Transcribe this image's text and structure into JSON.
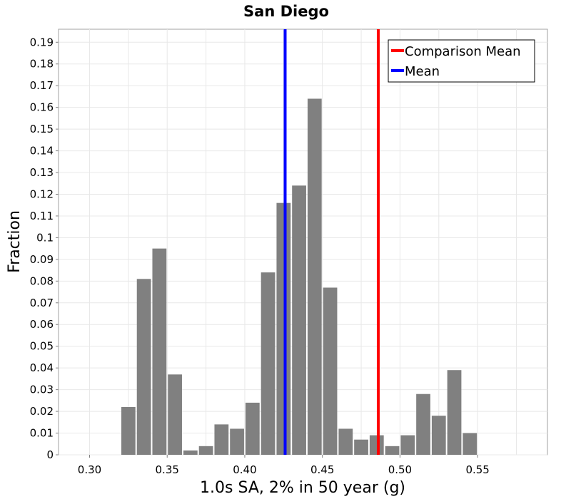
{
  "chart_data": {
    "type": "bar",
    "title": "San Diego",
    "xlabel": "1.0s SA, 2% in 50 year (g)",
    "ylabel": "Fraction",
    "xlim": [
      0.28,
      0.595
    ],
    "ylim": [
      0,
      0.196
    ],
    "grid": true,
    "legend_position": "top-right",
    "colors": {
      "bars": "#808080",
      "mean": "#0000ff",
      "comparison_mean": "#ff0000",
      "grid": "#e8e8e8"
    },
    "x_ticks": [
      "0.30",
      "0.35",
      "0.40",
      "0.45",
      "0.50",
      "0.55"
    ],
    "x_tick_values": [
      0.3,
      0.35,
      0.4,
      0.45,
      0.5,
      0.55
    ],
    "y_ticks": [
      "0",
      "0.01",
      "0.02",
      "0.03",
      "0.04",
      "0.05",
      "0.06",
      "0.07",
      "0.08",
      "0.09",
      "0.1",
      "0.11",
      "0.12",
      "0.13",
      "0.14",
      "0.15",
      "0.16",
      "0.17",
      "0.18",
      "0.19"
    ],
    "y_tick_values": [
      0,
      0.01,
      0.02,
      0.03,
      0.04,
      0.05,
      0.06,
      0.07,
      0.08,
      0.09,
      0.1,
      0.11,
      0.12,
      0.13,
      0.14,
      0.15,
      0.16,
      0.17,
      0.18,
      0.19
    ],
    "bins": [
      {
        "x": 0.325,
        "value": 0.022
      },
      {
        "x": 0.335,
        "value": 0.081
      },
      {
        "x": 0.345,
        "value": 0.095
      },
      {
        "x": 0.355,
        "value": 0.037
      },
      {
        "x": 0.365,
        "value": 0.002
      },
      {
        "x": 0.375,
        "value": 0.004
      },
      {
        "x": 0.385,
        "value": 0.014
      },
      {
        "x": 0.395,
        "value": 0.012
      },
      {
        "x": 0.405,
        "value": 0.024
      },
      {
        "x": 0.415,
        "value": 0.084
      },
      {
        "x": 0.425,
        "value": 0.116
      },
      {
        "x": 0.435,
        "value": 0.124
      },
      {
        "x": 0.445,
        "value": 0.164
      },
      {
        "x": 0.455,
        "value": 0.077
      },
      {
        "x": 0.465,
        "value": 0.012
      },
      {
        "x": 0.475,
        "value": 0.007
      },
      {
        "x": 0.485,
        "value": 0.009
      },
      {
        "x": 0.495,
        "value": 0.004
      },
      {
        "x": 0.505,
        "value": 0.009
      },
      {
        "x": 0.515,
        "value": 0.028
      },
      {
        "x": 0.525,
        "value": 0.018
      },
      {
        "x": 0.535,
        "value": 0.039
      },
      {
        "x": 0.545,
        "value": 0.01
      }
    ],
    "bin_width": 0.01,
    "lines": [
      {
        "name": "Comparison Mean",
        "x": 0.486,
        "color": "#ff0000"
      },
      {
        "name": "Mean",
        "x": 0.426,
        "color": "#0000ff"
      }
    ]
  }
}
